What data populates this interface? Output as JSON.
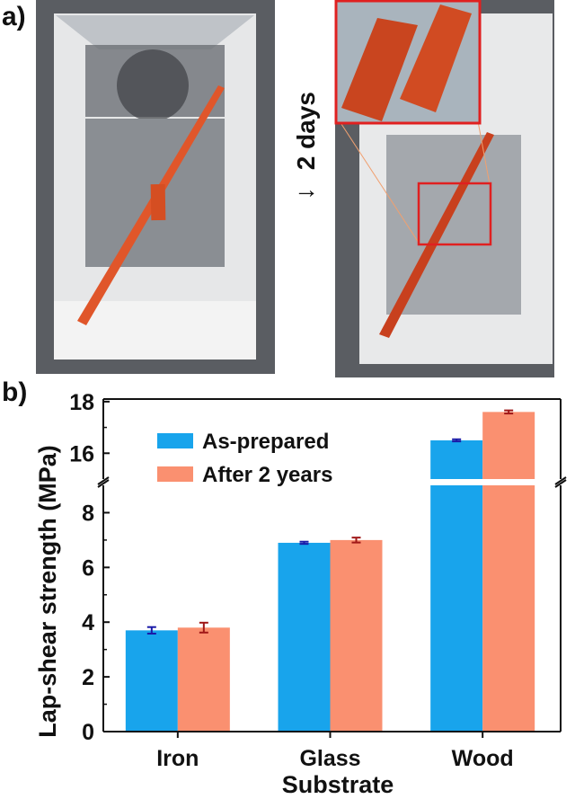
{
  "panel_a": {
    "label": "a)",
    "arrow_text": "2 days",
    "arrow_icon": "down-arrow-icon",
    "colors": {
      "strip": "#e0562a",
      "background": "#5a5d62",
      "box": "#eeeeee",
      "zoom_box": "#e02020"
    }
  },
  "panel_b": {
    "label": "b)"
  },
  "chart_data": {
    "type": "bar",
    "title": "",
    "xlabel": "Substrate",
    "ylabel": "Lap-shear strength (MPa)",
    "categories": [
      "Iron",
      "Glass",
      "Wood"
    ],
    "series": [
      {
        "name": "As-prepared",
        "color": "#18a4ec",
        "error_color": "#1a1aa8",
        "values": [
          3.7,
          6.9,
          16.5
        ],
        "errors": [
          0.12,
          0.04,
          0.04
        ]
      },
      {
        "name": "After 2 years",
        "color": "#fa9070",
        "error_color": "#a01818",
        "values": [
          3.8,
          7.0,
          17.6
        ],
        "errors": [
          0.18,
          0.09,
          0.06
        ]
      }
    ],
    "y_axis": {
      "broken": true,
      "lower_range": [
        0,
        9
      ],
      "upper_range": [
        15,
        18.1
      ],
      "lower_ticks": [
        "0",
        "2",
        "4",
        "6",
        "8"
      ],
      "upper_ticks": [
        "16",
        "18"
      ]
    },
    "legend": "top-left",
    "grid": false
  }
}
